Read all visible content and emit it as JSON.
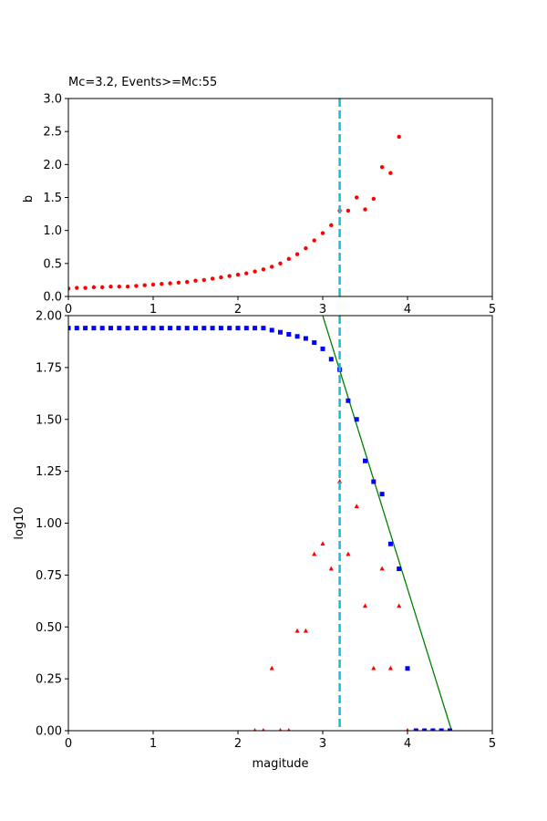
{
  "chart_data": [
    {
      "type": "scatter",
      "title": "Mc=3.2, Events>=Mc:55",
      "xlabel": "",
      "ylabel": "b",
      "xlim": [
        0,
        5
      ],
      "ylim": [
        0,
        3
      ],
      "xticks": [
        "0",
        "1",
        "2",
        "3",
        "4",
        "5"
      ],
      "yticks": [
        "0.0",
        "0.5",
        "1.0",
        "1.5",
        "2.0",
        "2.5",
        "3.0"
      ],
      "vline": {
        "x": 3.2,
        "color": "#17becf",
        "style": "dashed"
      },
      "series": [
        {
          "color": "#ff0000",
          "marker": "circle",
          "x": [
            0.0,
            0.1,
            0.2,
            0.3,
            0.4,
            0.5,
            0.6,
            0.7,
            0.8,
            0.9,
            1.0,
            1.1,
            1.2,
            1.3,
            1.4,
            1.5,
            1.6,
            1.7,
            1.8,
            1.9,
            2.0,
            2.1,
            2.2,
            2.3,
            2.4,
            2.5,
            2.6,
            2.7,
            2.8,
            2.9,
            3.0,
            3.1,
            3.2,
            3.3,
            3.4,
            3.5,
            3.6,
            3.7,
            3.8,
            3.9
          ],
          "y": [
            0.12,
            0.13,
            0.13,
            0.14,
            0.14,
            0.15,
            0.15,
            0.15,
            0.16,
            0.17,
            0.18,
            0.19,
            0.2,
            0.21,
            0.22,
            0.24,
            0.25,
            0.27,
            0.29,
            0.31,
            0.33,
            0.35,
            0.38,
            0.41,
            0.45,
            0.5,
            0.57,
            0.64,
            0.73,
            0.85,
            0.96,
            1.08,
            1.3,
            1.3,
            1.5,
            1.32,
            1.48,
            1.96,
            1.87,
            2.42
          ]
        }
      ]
    },
    {
      "type": "scatter",
      "title": "",
      "xlabel": "magitude",
      "ylabel": "log10",
      "xlim": [
        0,
        5
      ],
      "ylim": [
        0,
        2
      ],
      "xticks": [
        "0",
        "1",
        "2",
        "3",
        "4",
        "5"
      ],
      "yticks": [
        "0.00",
        "0.25",
        "0.50",
        "0.75",
        "1.00",
        "1.25",
        "1.50",
        "1.75",
        "2.00"
      ],
      "vline": {
        "x": 3.2,
        "color": "#17becf",
        "style": "dashed"
      },
      "fit_line": {
        "color": "#008000",
        "x": [
          3.0,
          4.52
        ],
        "y": [
          2.0,
          0.0
        ]
      },
      "series": [
        {
          "color": "#0000ff",
          "marker": "square",
          "x": [
            0.0,
            0.1,
            0.2,
            0.3,
            0.4,
            0.5,
            0.6,
            0.7,
            0.8,
            0.9,
            1.0,
            1.1,
            1.2,
            1.3,
            1.4,
            1.5,
            1.6,
            1.7,
            1.8,
            1.9,
            2.0,
            2.1,
            2.2,
            2.3,
            2.4,
            2.5,
            2.6,
            2.7,
            2.8,
            2.9,
            3.0,
            3.1,
            3.2,
            3.3,
            3.4,
            3.5,
            3.6,
            3.7,
            3.8,
            3.9,
            4.0,
            4.1,
            4.2,
            4.3,
            4.4,
            4.5
          ],
          "y": [
            1.94,
            1.94,
            1.94,
            1.94,
            1.94,
            1.94,
            1.94,
            1.94,
            1.94,
            1.94,
            1.94,
            1.94,
            1.94,
            1.94,
            1.94,
            1.94,
            1.94,
            1.94,
            1.94,
            1.94,
            1.94,
            1.94,
            1.94,
            1.94,
            1.93,
            1.92,
            1.91,
            1.9,
            1.89,
            1.87,
            1.84,
            1.79,
            1.74,
            1.59,
            1.5,
            1.3,
            1.2,
            1.14,
            0.9,
            0.78,
            0.3,
            0.0,
            0.0,
            0.0,
            0.0,
            0.0
          ]
        },
        {
          "color": "#ff0000",
          "marker": "triangle",
          "x": [
            2.2,
            2.3,
            2.4,
            2.5,
            2.6,
            2.7,
            2.8,
            2.9,
            3.0,
            3.1,
            3.2,
            3.3,
            3.4,
            3.5,
            3.6,
            3.7,
            3.8,
            3.9,
            4.0
          ],
          "y": [
            0.0,
            0.0,
            0.3,
            0.0,
            0.0,
            0.48,
            0.48,
            0.85,
            0.9,
            0.78,
            1.2,
            0.85,
            1.08,
            0.6,
            0.3,
            0.78,
            0.3,
            0.6,
            0.0
          ]
        }
      ]
    }
  ]
}
